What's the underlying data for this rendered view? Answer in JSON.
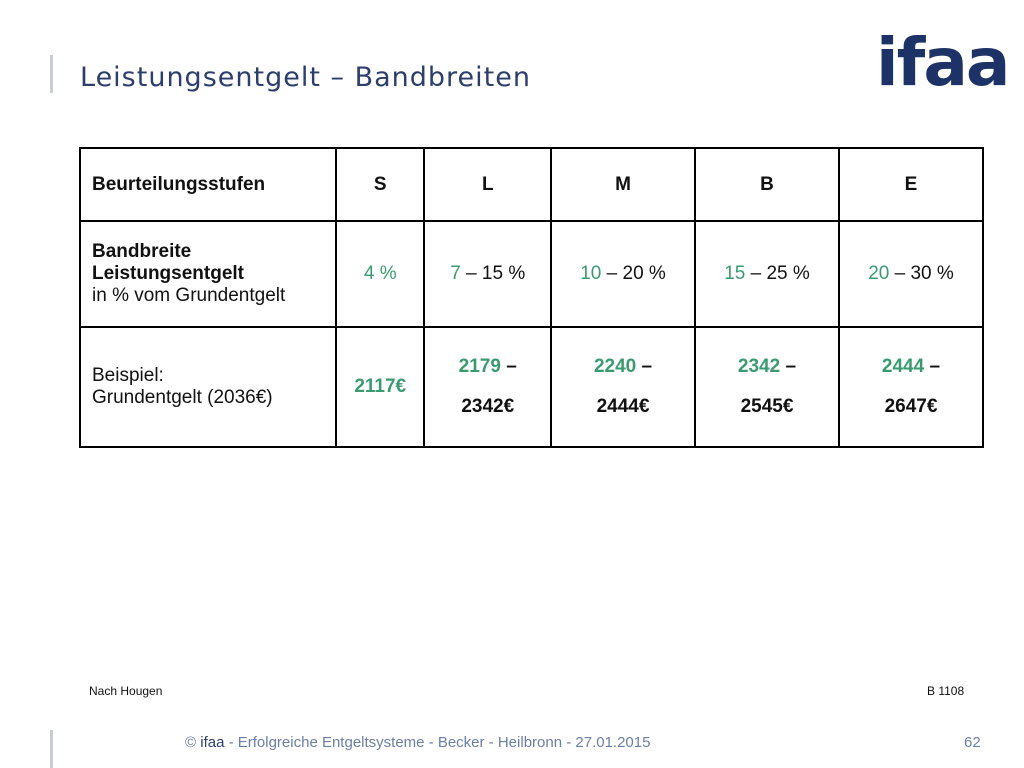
{
  "slide": {
    "title": "Leistungsentgelt – Bandbreiten",
    "logo_text": "ifaa"
  },
  "table": {
    "header": {
      "label": "Beurteilungsstufen",
      "levels": [
        "S",
        "L",
        "M",
        "B",
        "E"
      ]
    },
    "bandwidth": {
      "label_line1": "Bandbreite",
      "label_line2": "Leistungsentgelt",
      "label_line3": "in % vom Grundentgelt",
      "cells": [
        {
          "from": "4 %",
          "rest": ""
        },
        {
          "from": "7",
          "rest": " – 15 %"
        },
        {
          "from": "10",
          "rest": " – 20 %"
        },
        {
          "from": "15",
          "rest": " – 25 %"
        },
        {
          "from": "20",
          "rest": " – 30 %"
        }
      ]
    },
    "example": {
      "label_line1": "Beispiel:",
      "label_line2": "Grundentgelt (2036€)",
      "cells": [
        {
          "first": "2117€",
          "dash": "",
          "second": ""
        },
        {
          "first": "2179",
          "dash": " –",
          "second": "2342€"
        },
        {
          "first": "2240",
          "dash": " –",
          "second": "2444€"
        },
        {
          "first": "2342",
          "dash": " –",
          "second": "2545€"
        },
        {
          "first": "2444",
          "dash": " –",
          "second": "2647€"
        }
      ]
    }
  },
  "notes": {
    "source": "Nach Hougen",
    "code": "B 1108"
  },
  "footer": {
    "copyright": "©",
    "brand": "ifaa",
    "text": " - Erfolgreiche Entgeltsysteme - Becker - Heilbronn - 27.01.2015",
    "page_number": "62"
  },
  "colors": {
    "title": "#2c3e6b",
    "logo": "#1d3266",
    "highlight_green": "#3a9b70",
    "footer_text": "#6b7fa6",
    "accent_bar": "#c8ccd6"
  }
}
